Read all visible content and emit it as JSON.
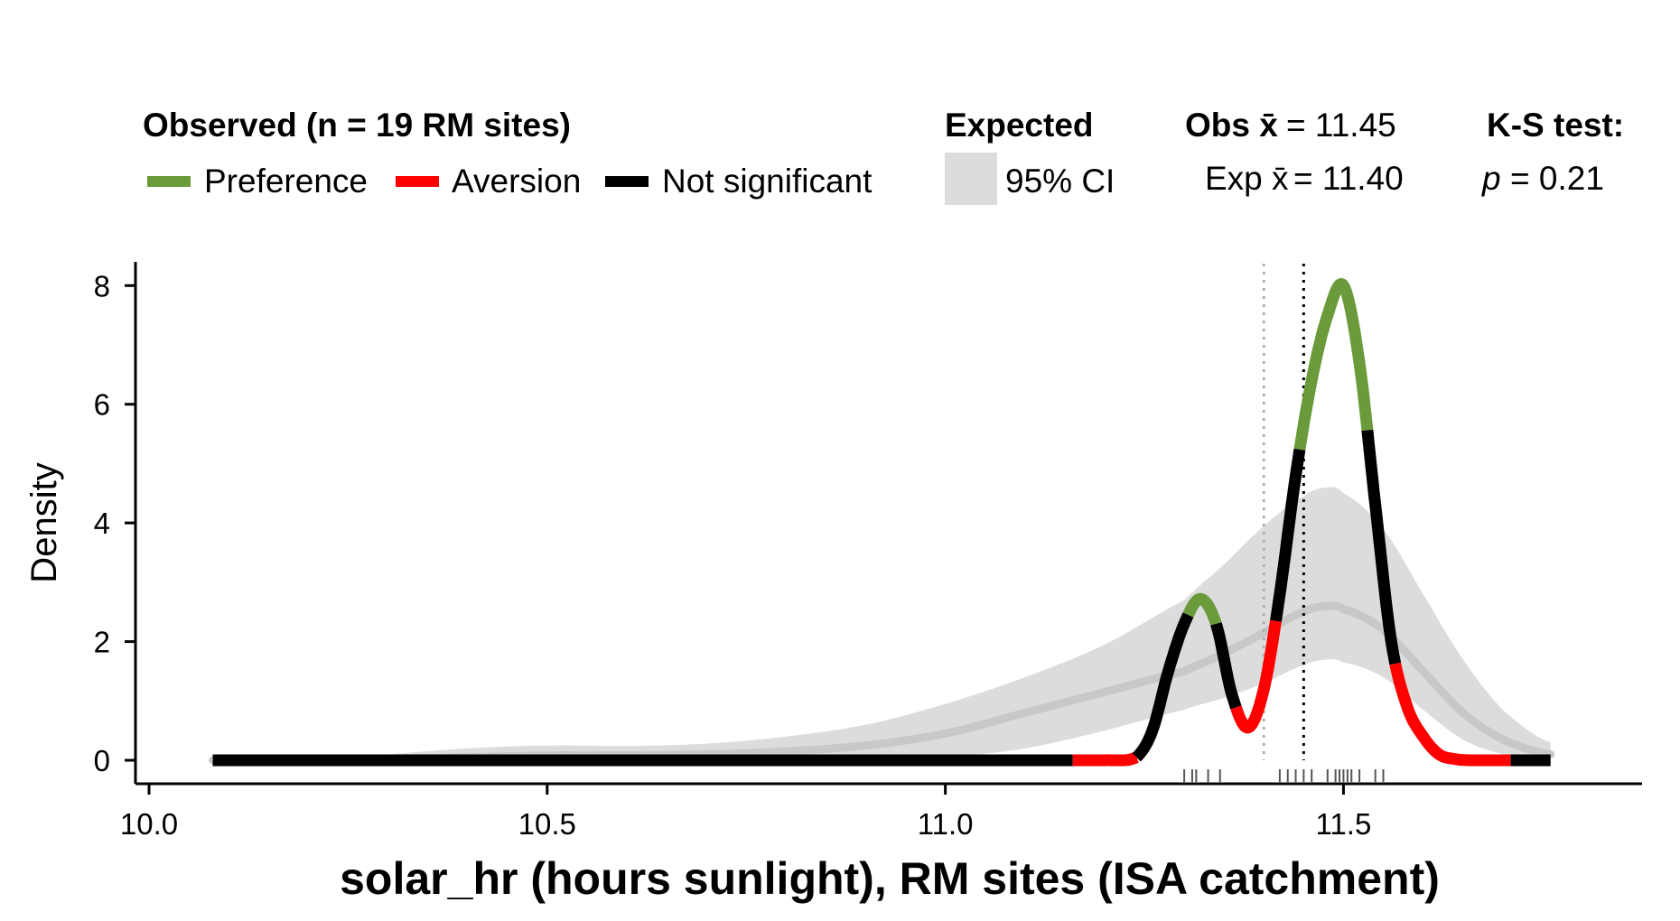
{
  "chart_data": {
    "type": "line",
    "title": "",
    "xlabel": "solar_hr (hours sunlight), RM sites (ISA catchment)",
    "ylabel": "Density",
    "xlim": [
      10.0,
      11.85
    ],
    "ylim": [
      0,
      8.4
    ],
    "x_ticks": [
      10.0,
      10.5,
      11.0,
      11.5
    ],
    "x_tick_labels": [
      "10.0",
      "10.5",
      "11.0",
      "11.5"
    ],
    "y_ticks": [
      0,
      2,
      4,
      6,
      8
    ],
    "y_tick_labels": [
      "0",
      "2",
      "4",
      "6",
      "8"
    ],
    "grid": false,
    "legend": {
      "placement": "top",
      "observed_title": "Observed (n = 19 RM sites)",
      "items": [
        {
          "label": "Preference",
          "color": "#6a9a3a"
        },
        {
          "label": "Aversion",
          "color": "#ff0000"
        },
        {
          "label": "Not significant",
          "color": "#000000"
        }
      ],
      "expected_title": "Expected",
      "expected_item": {
        "label": "95% CI",
        "color": "#dcdcdc"
      }
    },
    "stats": {
      "obs_mean_label": "Obs x̄",
      "obs_mean_value": "= 11.45",
      "exp_mean_label": "Exp x̄",
      "exp_mean_value": "= 11.40",
      "ks_title": "K-S test:",
      "ks_p_label": "p",
      "ks_p_value": "= 0.21"
    },
    "observed_mean": 11.45,
    "expected_mean": 11.4,
    "observed_density": {
      "x": [
        10.08,
        11.0,
        11.16,
        11.2,
        11.24,
        11.26,
        11.28,
        11.3,
        11.32,
        11.34,
        11.36,
        11.38,
        11.4,
        11.42,
        11.44,
        11.46,
        11.48,
        11.5,
        11.52,
        11.54,
        11.56,
        11.58,
        11.6,
        11.62,
        11.64,
        11.66,
        11.68,
        11.72,
        11.76
      ],
      "y": [
        0,
        0,
        0,
        0,
        0.05,
        0.5,
        1.5,
        2.3,
        2.72,
        2.3,
        1.1,
        0.55,
        1.2,
        2.8,
        4.8,
        6.4,
        7.5,
        8.0,
        6.7,
        4.3,
        2.0,
        0.9,
        0.4,
        0.1,
        0.02,
        0,
        0,
        0,
        0
      ],
      "segments": [
        {
          "from": 10.08,
          "to": 11.16,
          "status": "Not significant"
        },
        {
          "from": 11.16,
          "to": 11.24,
          "status": "Aversion"
        },
        {
          "from": 11.24,
          "to": 11.305,
          "status": "Not significant"
        },
        {
          "from": 11.305,
          "to": 11.34,
          "status": "Preference"
        },
        {
          "from": 11.34,
          "to": 11.365,
          "status": "Not significant"
        },
        {
          "from": 11.365,
          "to": 11.415,
          "status": "Aversion"
        },
        {
          "from": 11.415,
          "to": 11.445,
          "status": "Not significant"
        },
        {
          "from": 11.445,
          "to": 11.53,
          "status": "Preference"
        },
        {
          "from": 11.53,
          "to": 11.565,
          "status": "Not significant"
        },
        {
          "from": 11.565,
          "to": 11.71,
          "status": "Aversion"
        },
        {
          "from": 11.71,
          "to": 11.76,
          "status": "Not significant"
        }
      ]
    },
    "expected_density": {
      "x": [
        10.08,
        10.2,
        10.3,
        10.4,
        10.5,
        10.6,
        10.7,
        10.8,
        10.9,
        11.0,
        11.1,
        11.2,
        11.3,
        11.35,
        11.4,
        11.45,
        11.48,
        11.5,
        11.55,
        11.6,
        11.65,
        11.7,
        11.76
      ],
      "mean": [
        0,
        0,
        0.02,
        0.05,
        0.08,
        0.08,
        0.1,
        0.15,
        0.25,
        0.45,
        0.8,
        1.15,
        1.5,
        1.8,
        2.15,
        2.5,
        2.6,
        2.55,
        2.2,
        1.5,
        0.8,
        0.35,
        0.1
      ],
      "lower": [
        0,
        0,
        0,
        0,
        0,
        0,
        0,
        0,
        0,
        0.05,
        0.2,
        0.5,
        0.85,
        1.05,
        1.3,
        1.6,
        1.7,
        1.65,
        1.4,
        0.85,
        0.35,
        0.1,
        0
      ],
      "upper": [
        0,
        0,
        0.1,
        0.2,
        0.25,
        0.24,
        0.28,
        0.4,
        0.6,
        0.95,
        1.4,
        1.95,
        2.7,
        3.3,
        3.95,
        4.45,
        4.6,
        4.5,
        3.9,
        2.8,
        1.7,
        0.85,
        0.3
      ]
    },
    "rug_x": [
      11.3,
      11.31,
      11.315,
      11.33,
      11.345,
      11.42,
      11.43,
      11.44,
      11.45,
      11.46,
      11.48,
      11.49,
      11.495,
      11.5,
      11.505,
      11.51,
      11.52,
      11.54,
      11.55
    ]
  }
}
